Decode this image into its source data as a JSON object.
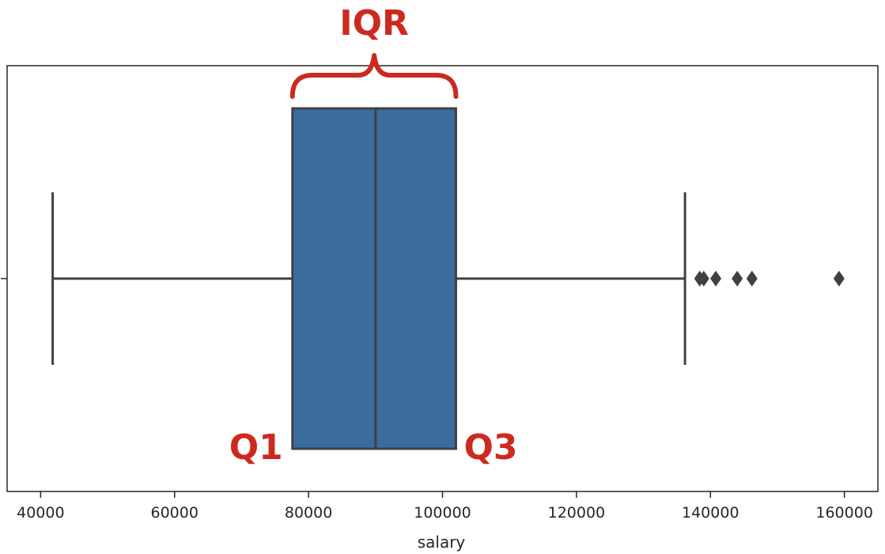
{
  "chart_data": {
    "type": "box",
    "xlabel": "salary",
    "x_range": [
      35000,
      165000
    ],
    "x_ticks": [
      40000,
      60000,
      80000,
      100000,
      120000,
      140000,
      160000
    ],
    "x_tick_labels": [
      "40000",
      "60000",
      "80000",
      "100000",
      "120000",
      "140000",
      "160000"
    ],
    "box": {
      "whisker_low": 41800,
      "q1": 77600,
      "median": 90000,
      "q3": 102000,
      "whisker_high": 136200
    },
    "outliers": [
      138400,
      139000,
      140800,
      144000,
      146200,
      159200
    ],
    "box_color": "#3a6d9e",
    "line_color": "#404040"
  },
  "annotations": {
    "iqr_label": "IQR",
    "q1_label": "Q1",
    "q3_label": "Q3",
    "color": "#cc2a1f"
  }
}
